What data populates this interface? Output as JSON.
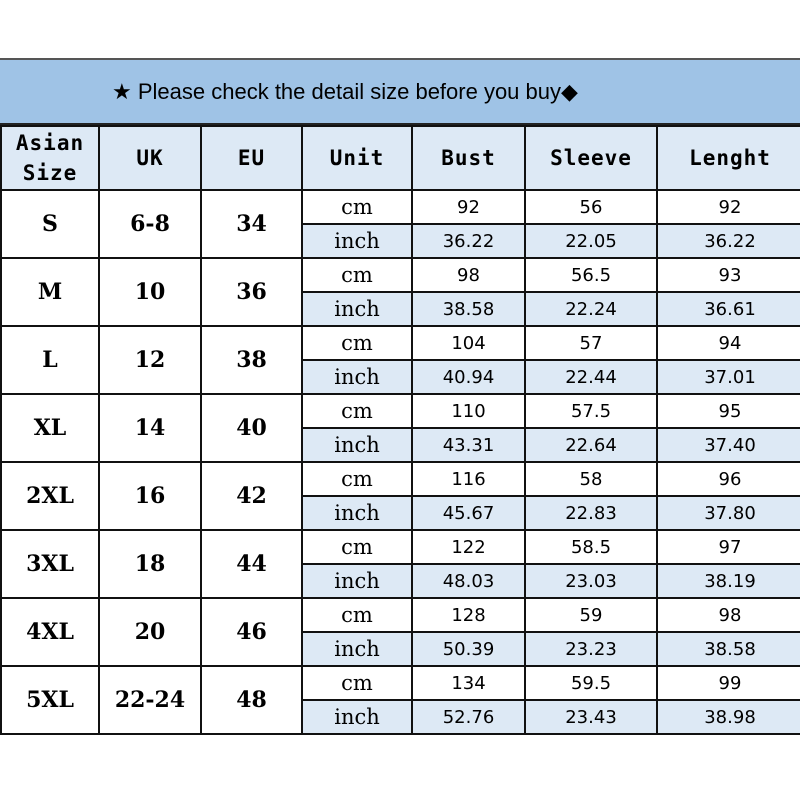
{
  "banner": {
    "icon": "star-icon",
    "icon_glyph": "★",
    "text": "Please check the detail size before you buy",
    "trail_glyph": "◆"
  },
  "headers": [
    "Asian Size",
    "UK",
    "EU",
    "Unit",
    "Bust",
    "Sleeve",
    "Lenght"
  ],
  "units": {
    "cm": "cm",
    "inch": "inch"
  },
  "rows": [
    {
      "size": "S",
      "uk": "6-8",
      "eu": "34",
      "cm": [
        "92",
        "56",
        "92"
      ],
      "inch": [
        "36.22",
        "22.05",
        "36.22"
      ]
    },
    {
      "size": "M",
      "uk": "10",
      "eu": "36",
      "cm": [
        "98",
        "56.5",
        "93"
      ],
      "inch": [
        "38.58",
        "22.24",
        "36.61"
      ]
    },
    {
      "size": "L",
      "uk": "12",
      "eu": "38",
      "cm": [
        "104",
        "57",
        "94"
      ],
      "inch": [
        "40.94",
        "22.44",
        "37.01"
      ]
    },
    {
      "size": "XL",
      "uk": "14",
      "eu": "40",
      "cm": [
        "110",
        "57.5",
        "95"
      ],
      "inch": [
        "43.31",
        "22.64",
        "37.40"
      ]
    },
    {
      "size": "2XL",
      "uk": "16",
      "eu": "42",
      "cm": [
        "116",
        "58",
        "96"
      ],
      "inch": [
        "45.67",
        "22.83",
        "37.80"
      ]
    },
    {
      "size": "3XL",
      "uk": "18",
      "eu": "44",
      "cm": [
        "122",
        "58.5",
        "97"
      ],
      "inch": [
        "48.03",
        "23.03",
        "38.19"
      ]
    },
    {
      "size": "4XL",
      "uk": "20",
      "eu": "46",
      "cm": [
        "128",
        "59",
        "98"
      ],
      "inch": [
        "50.39",
        "23.23",
        "38.58"
      ]
    },
    {
      "size": "5XL",
      "uk": "22-24",
      "eu": "48",
      "cm": [
        "134",
        "59.5",
        "99"
      ],
      "inch": [
        "52.76",
        "23.43",
        "38.98"
      ]
    }
  ]
}
